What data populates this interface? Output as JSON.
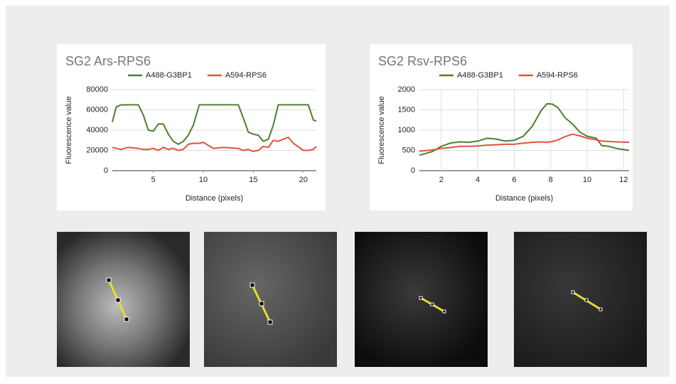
{
  "chart_data": [
    {
      "type": "line",
      "title": "SG2 Ars-RPS6",
      "x_label": "Distance (pixels)",
      "y_label": "Fluorescence value",
      "x": [
        0.9,
        1.3,
        1.8,
        2.5,
        3.5,
        4,
        4.5,
        5,
        5.5,
        6,
        6.5,
        7,
        7.5,
        8,
        8.5,
        9,
        9.6,
        10,
        11,
        12,
        13.5,
        14,
        14.5,
        15,
        15.5,
        16,
        16.5,
        17,
        17.5,
        18,
        18.5,
        19,
        20,
        20.5,
        21,
        21.3
      ],
      "series": [
        {
          "name": "A488-G3BP1",
          "color": "#4e7f2f",
          "values": [
            48000,
            63000,
            65000,
            65000,
            65000,
            55000,
            40000,
            39000,
            46000,
            46000,
            36000,
            29000,
            26000,
            29000,
            35000,
            45000,
            65000,
            65000,
            65000,
            65000,
            65000,
            52000,
            38000,
            36000,
            35000,
            29000,
            31000,
            45000,
            65000,
            65000,
            65000,
            65000,
            65000,
            65000,
            50000,
            49000
          ]
        },
        {
          "name": "A594-RPS6",
          "color": "#e0533d",
          "values": [
            23000,
            22000,
            21000,
            23000,
            22000,
            21000,
            21000,
            22000,
            20000,
            23000,
            21000,
            22000,
            20000,
            21000,
            26000,
            27000,
            27000,
            28000,
            22000,
            23000,
            22000,
            20000,
            21000,
            19000,
            20000,
            24000,
            23000,
            30000,
            29000,
            31000,
            33000,
            27000,
            20000,
            20000,
            21000,
            24000
          ]
        }
      ],
      "xlim": [
        0.9,
        21.3
      ],
      "xticks": [
        5,
        10,
        15,
        20
      ],
      "ylim": [
        0,
        80000
      ],
      "yticks": [
        0,
        20000,
        40000,
        60000,
        80000
      ],
      "xgrid": false,
      "ygrid": true
    },
    {
      "type": "line",
      "title": "SG2 Rsv-RPS6",
      "x_label": "Distance (pixels)",
      "y_label": "Fluorescence value",
      "x": [
        0.8,
        1.5,
        2,
        2.5,
        3,
        3.5,
        4,
        4.5,
        5,
        5.5,
        6,
        6.5,
        7,
        7.5,
        7.8,
        8.1,
        8.4,
        8.8,
        9.2,
        9.6,
        10,
        10.5,
        10.8,
        11.2,
        11.6,
        12.3
      ],
      "series": [
        {
          "name": "A488-G3BP1",
          "color": "#4e7f2f",
          "values": [
            380,
            470,
            600,
            680,
            710,
            700,
            730,
            800,
            780,
            730,
            750,
            850,
            1100,
            1500,
            1650,
            1640,
            1550,
            1300,
            1150,
            950,
            850,
            800,
            620,
            600,
            550,
            500
          ]
        },
        {
          "name": "A594-RPS6",
          "color": "#e0533d",
          "values": [
            480,
            510,
            550,
            570,
            600,
            600,
            610,
            630,
            640,
            650,
            650,
            680,
            700,
            710,
            700,
            720,
            760,
            840,
            900,
            860,
            800,
            760,
            730,
            720,
            710,
            700
          ]
        }
      ],
      "xlim": [
        0.8,
        12.3
      ],
      "xticks": [
        2,
        4,
        6,
        8,
        10,
        12
      ],
      "ylim": [
        0,
        2000
      ],
      "yticks": [
        0,
        500,
        1000,
        1500,
        2000
      ],
      "xgrid": true,
      "ygrid": true
    }
  ]
}
